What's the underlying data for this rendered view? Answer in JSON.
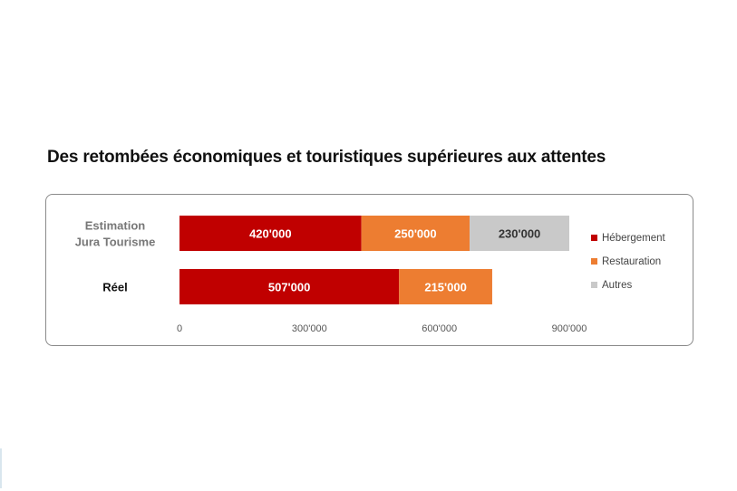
{
  "title": "Des retombées économiques et touristiques supérieures aux attentes",
  "chart_data": {
    "type": "bar",
    "orientation": "horizontal",
    "stacked": true,
    "categories": [
      [
        "Estimation",
        "Jura Tourisme"
      ],
      [
        "Réel"
      ]
    ],
    "category_colors": [
      "#777777",
      "#111111"
    ],
    "series": [
      {
        "name": "Hébergement",
        "color": "#c00000",
        "label_color": "#ffffff",
        "values": [
          420000,
          507000
        ],
        "labels": [
          "420'000",
          "507'000"
        ]
      },
      {
        "name": "Restauration",
        "color": "#ed7d31",
        "label_color": "#ffffff",
        "values": [
          250000,
          215000
        ],
        "labels": [
          "250'000",
          "215'000"
        ]
      },
      {
        "name": "Autres",
        "color": "#c9c9c9",
        "label_color": "#333333",
        "values": [
          230000,
          null
        ],
        "labels": [
          "230'000",
          ""
        ]
      }
    ],
    "xlim": [
      0,
      900000
    ],
    "xticks": [
      0,
      300000,
      600000,
      900000
    ],
    "xtick_labels": [
      "0",
      "300'000",
      "600'000",
      "900'000"
    ],
    "grid": false,
    "legend_position": "right"
  }
}
